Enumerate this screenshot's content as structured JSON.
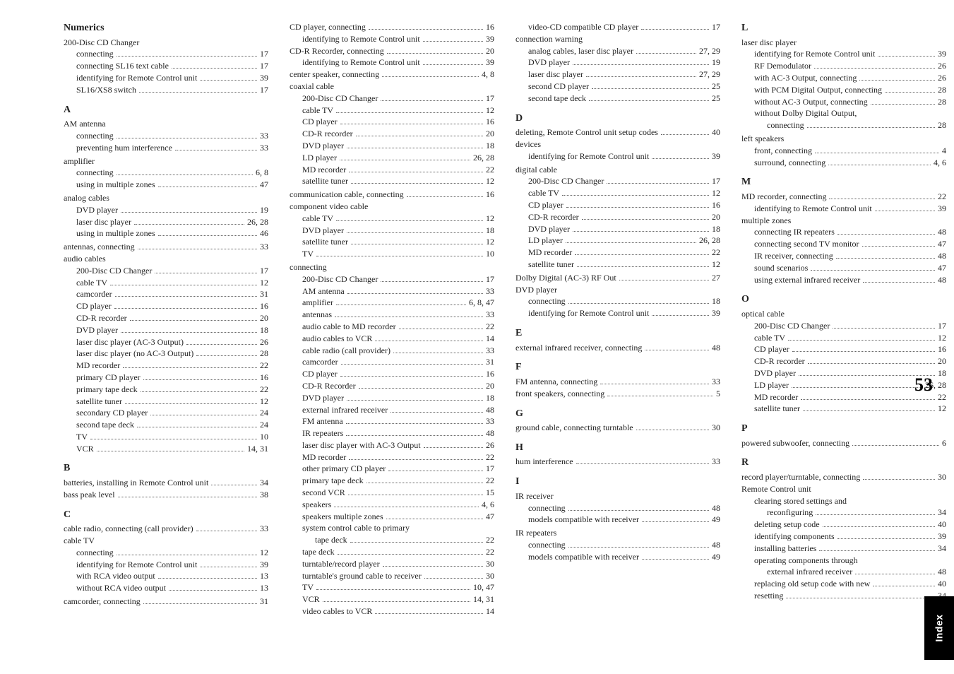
{
  "bigPage": "53",
  "sideTab": "Index",
  "columns": [
    [
      {
        "type": "heading",
        "text": "Numerics"
      },
      {
        "type": "group",
        "title": "200-Disc CD Changer",
        "items": [
          {
            "l": 1,
            "t": "connecting",
            "p": "17"
          },
          {
            "l": 1,
            "t": "connecting SL16 text cable",
            "p": "17"
          },
          {
            "l": 1,
            "t": "identifying for Remote Control unit",
            "p": "39"
          },
          {
            "l": 1,
            "t": "SL16/XS8 switch",
            "p": "17"
          }
        ]
      },
      {
        "type": "heading",
        "text": "A"
      },
      {
        "type": "group",
        "title": "AM antenna",
        "items": [
          {
            "l": 1,
            "t": "connecting",
            "p": "33"
          },
          {
            "l": 1,
            "t": "preventing hum interference",
            "p": "33"
          }
        ]
      },
      {
        "type": "group",
        "title": "amplifier",
        "items": [
          {
            "l": 1,
            "t": "connecting",
            "p": "6, 8"
          },
          {
            "l": 1,
            "t": "using in multiple zones",
            "p": "47"
          }
        ]
      },
      {
        "type": "group",
        "title": "analog cables",
        "items": [
          {
            "l": 1,
            "t": "DVD player",
            "p": "19"
          },
          {
            "l": 1,
            "t": "laser disc player",
            "p": "26, 28"
          },
          {
            "l": 1,
            "t": "using in multiple zones",
            "p": "46"
          }
        ]
      },
      {
        "type": "entry",
        "l": 0,
        "t": "antennas, connecting",
        "p": "33"
      },
      {
        "type": "group",
        "title": "audio cables",
        "items": [
          {
            "l": 1,
            "t": "200-Disc CD Changer",
            "p": "17"
          },
          {
            "l": 1,
            "t": "cable TV",
            "p": "12"
          },
          {
            "l": 1,
            "t": "camcorder",
            "p": "31"
          },
          {
            "l": 1,
            "t": "CD player",
            "p": "16"
          },
          {
            "l": 1,
            "t": "CD-R recorder",
            "p": "20"
          },
          {
            "l": 1,
            "t": "DVD player",
            "p": "18"
          },
          {
            "l": 1,
            "t": "laser disc player (AC-3 Output)",
            "p": "26"
          },
          {
            "l": 1,
            "t": "laser disc player (no AC-3 Output)",
            "p": "28"
          },
          {
            "l": 1,
            "t": "MD recorder",
            "p": "22"
          },
          {
            "l": 1,
            "t": "primary CD player",
            "p": "16"
          },
          {
            "l": 1,
            "t": "primary tape deck",
            "p": "22"
          },
          {
            "l": 1,
            "t": "satellite tuner",
            "p": "12"
          },
          {
            "l": 1,
            "t": "secondary CD player",
            "p": "24"
          },
          {
            "l": 1,
            "t": "second tape deck",
            "p": "24"
          },
          {
            "l": 1,
            "t": "TV",
            "p": "10"
          },
          {
            "l": 1,
            "t": "VCR",
            "p": "14, 31"
          }
        ]
      },
      {
        "type": "heading",
        "text": "B"
      },
      {
        "type": "entry",
        "l": 0,
        "t": "batteries, installing in Remote Control unit",
        "p": "34"
      },
      {
        "type": "entry",
        "l": 0,
        "t": "bass peak level",
        "p": "38"
      },
      {
        "type": "heading",
        "text": "C"
      },
      {
        "type": "entry",
        "l": 0,
        "t": "cable radio, connecting (call provider)",
        "p": "33"
      },
      {
        "type": "group",
        "title": "cable TV",
        "items": [
          {
            "l": 1,
            "t": "connecting",
            "p": "12"
          },
          {
            "l": 1,
            "t": "identifying for Remote Control unit",
            "p": "39"
          },
          {
            "l": 1,
            "t": "with RCA video output",
            "p": "13"
          },
          {
            "l": 1,
            "t": "without RCA video output",
            "p": "13"
          }
        ]
      },
      {
        "type": "entry",
        "l": 0,
        "t": "camcorder, connecting",
        "p": "31"
      }
    ],
    [
      {
        "type": "entry",
        "l": 0,
        "t": "CD player, connecting",
        "p": "16"
      },
      {
        "type": "entry",
        "l": 1,
        "t": "identifying to Remote Control unit",
        "p": "39"
      },
      {
        "type": "entry",
        "l": 0,
        "t": "CD-R Recorder, connecting",
        "p": "20"
      },
      {
        "type": "entry",
        "l": 1,
        "t": "identifying to Remote Control unit",
        "p": "39"
      },
      {
        "type": "entry",
        "l": 0,
        "t": "center speaker, connecting",
        "p": "4, 8"
      },
      {
        "type": "group",
        "title": "coaxial cable",
        "items": [
          {
            "l": 1,
            "t": "200-Disc CD Changer",
            "p": "17"
          },
          {
            "l": 1,
            "t": "cable TV",
            "p": "12"
          },
          {
            "l": 1,
            "t": "CD player",
            "p": "16"
          },
          {
            "l": 1,
            "t": "CD-R recorder",
            "p": "20"
          },
          {
            "l": 1,
            "t": "DVD player",
            "p": "18"
          },
          {
            "l": 1,
            "t": "LD player",
            "p": "26, 28"
          },
          {
            "l": 1,
            "t": "MD recorder",
            "p": "22"
          },
          {
            "l": 1,
            "t": "satellite tuner",
            "p": "12"
          }
        ]
      },
      {
        "type": "entry",
        "l": 0,
        "t": "communication cable, connecting",
        "p": "16"
      },
      {
        "type": "group",
        "title": "component video cable",
        "items": [
          {
            "l": 1,
            "t": "cable TV",
            "p": "12"
          },
          {
            "l": 1,
            "t": "DVD player",
            "p": "18"
          },
          {
            "l": 1,
            "t": "satellite tuner",
            "p": "12"
          },
          {
            "l": 1,
            "t": "TV",
            "p": "10"
          }
        ]
      },
      {
        "type": "group",
        "title": "connecting",
        "items": [
          {
            "l": 1,
            "t": "200-Disc CD Changer",
            "p": "17"
          },
          {
            "l": 1,
            "t": "AM antenna",
            "p": "33"
          },
          {
            "l": 1,
            "t": "amplifier",
            "p": "6, 8, 47"
          },
          {
            "l": 1,
            "t": "antennas",
            "p": "33"
          },
          {
            "l": 1,
            "t": "audio cable to MD recorder",
            "p": "22"
          },
          {
            "l": 1,
            "t": "audio cables to VCR",
            "p": "14"
          },
          {
            "l": 1,
            "t": "cable radio (call provider)",
            "p": "33"
          },
          {
            "l": 1,
            "t": "camcorder",
            "p": "31"
          },
          {
            "l": 1,
            "t": "CD player",
            "p": "16"
          },
          {
            "l": 1,
            "t": "CD-R Recorder",
            "p": "20"
          },
          {
            "l": 1,
            "t": "DVD player",
            "p": "18"
          },
          {
            "l": 1,
            "t": "external infrared receiver",
            "p": "48"
          },
          {
            "l": 1,
            "t": "FM antenna",
            "p": "33"
          },
          {
            "l": 1,
            "t": "IR repeaters",
            "p": "48"
          },
          {
            "l": 1,
            "t": "laser disc player with AC-3 Output",
            "p": "26"
          },
          {
            "l": 1,
            "t": "MD recorder",
            "p": "22"
          },
          {
            "l": 1,
            "t": "other primary CD player",
            "p": "17"
          },
          {
            "l": 1,
            "t": "primary tape deck",
            "p": "22"
          },
          {
            "l": 1,
            "t": "second VCR",
            "p": "15"
          },
          {
            "l": 1,
            "t": "speakers",
            "p": "4, 6"
          },
          {
            "l": 1,
            "t": "speakers multiple zones",
            "p": "47"
          },
          {
            "l": 1,
            "t": "system control cable to primary"
          },
          {
            "l": 2,
            "t": "tape deck",
            "p": "22"
          },
          {
            "l": 1,
            "t": "tape deck",
            "p": "22"
          },
          {
            "l": 1,
            "t": "turntable/record player",
            "p": "30"
          },
          {
            "l": 1,
            "t": "turntable's ground cable to receiver",
            "p": "30"
          },
          {
            "l": 1,
            "t": "TV",
            "p": "10, 47"
          },
          {
            "l": 1,
            "t": "VCR",
            "p": "14, 31"
          },
          {
            "l": 1,
            "t": "video cables to VCR",
            "p": "14"
          }
        ]
      }
    ],
    [
      {
        "type": "entry",
        "l": 1,
        "t": "video-CD compatible CD player",
        "p": "17"
      },
      {
        "type": "group",
        "title": "connection warning",
        "items": [
          {
            "l": 1,
            "t": "analog cables, laser disc player",
            "p": "27, 29"
          },
          {
            "l": 1,
            "t": "DVD player",
            "p": "19"
          },
          {
            "l": 1,
            "t": "laser disc player",
            "p": "27, 29"
          },
          {
            "l": 1,
            "t": "second CD player",
            "p": "25"
          },
          {
            "l": 1,
            "t": "second tape deck",
            "p": "25"
          }
        ]
      },
      {
        "type": "heading",
        "text": "D"
      },
      {
        "type": "entry",
        "l": 0,
        "t": "deleting, Remote Control unit setup codes",
        "p": "40"
      },
      {
        "type": "group",
        "title": "devices",
        "items": [
          {
            "l": 1,
            "t": "identifying for Remote Control unit",
            "p": "39"
          }
        ]
      },
      {
        "type": "group",
        "title": "digital cable",
        "items": [
          {
            "l": 1,
            "t": "200-Disc CD Changer",
            "p": "17"
          },
          {
            "l": 1,
            "t": "cable TV",
            "p": "12"
          },
          {
            "l": 1,
            "t": "CD player",
            "p": "16"
          },
          {
            "l": 1,
            "t": "CD-R recorder",
            "p": "20"
          },
          {
            "l": 1,
            "t": "DVD player",
            "p": "18"
          },
          {
            "l": 1,
            "t": "LD player",
            "p": "26, 28"
          },
          {
            "l": 1,
            "t": "MD recorder",
            "p": "22"
          },
          {
            "l": 1,
            "t": "satellite tuner",
            "p": "12"
          }
        ]
      },
      {
        "type": "entry",
        "l": 0,
        "t": "Dolby Digital (AC-3) RF Out",
        "p": "27"
      },
      {
        "type": "group",
        "title": "DVD player",
        "items": [
          {
            "l": 1,
            "t": "connecting",
            "p": "18"
          },
          {
            "l": 1,
            "t": "identifying for Remote Control unit",
            "p": "39"
          }
        ]
      },
      {
        "type": "heading",
        "text": "E"
      },
      {
        "type": "entry",
        "l": 0,
        "t": "external infrared receiver, connecting",
        "p": "48"
      },
      {
        "type": "heading",
        "text": "F"
      },
      {
        "type": "entry",
        "l": 0,
        "t": "FM antenna, connecting",
        "p": "33"
      },
      {
        "type": "entry",
        "l": 0,
        "t": "front speakers, connecting",
        "p": "5"
      },
      {
        "type": "heading",
        "text": "G"
      },
      {
        "type": "entry",
        "l": 0,
        "t": "ground cable, connecting turntable",
        "p": "30"
      },
      {
        "type": "heading",
        "text": "H"
      },
      {
        "type": "entry",
        "l": 0,
        "t": "hum interference",
        "p": "33"
      },
      {
        "type": "heading",
        "text": "I"
      },
      {
        "type": "group",
        "title": "IR receiver",
        "items": [
          {
            "l": 1,
            "t": "connecting",
            "p": "48"
          },
          {
            "l": 1,
            "t": "models compatible with receiver",
            "p": "49"
          }
        ]
      },
      {
        "type": "group",
        "title": "IR repeaters",
        "items": [
          {
            "l": 1,
            "t": "connecting",
            "p": "48"
          },
          {
            "l": 1,
            "t": "models compatible with receiver",
            "p": "49"
          }
        ]
      }
    ],
    [
      {
        "type": "heading",
        "text": "L"
      },
      {
        "type": "group",
        "title": "laser disc player",
        "items": [
          {
            "l": 1,
            "t": "identifying for Remote Control unit",
            "p": "39"
          },
          {
            "l": 1,
            "t": "RF Demodulator",
            "p": "26"
          },
          {
            "l": 1,
            "t": "with AC-3 Output, connecting",
            "p": "26"
          },
          {
            "l": 1,
            "t": "with PCM Digital Output, connecting",
            "p": "28"
          },
          {
            "l": 1,
            "t": "without AC-3 Output, connecting",
            "p": "28"
          },
          {
            "l": 1,
            "t": "without Dolby Digital Output,"
          },
          {
            "l": 2,
            "t": "connecting",
            "p": "28"
          }
        ]
      },
      {
        "type": "group",
        "title": "left speakers",
        "items": [
          {
            "l": 1,
            "t": "front, connecting",
            "p": "4"
          },
          {
            "l": 1,
            "t": "surround, connecting",
            "p": "4, 6"
          }
        ]
      },
      {
        "type": "heading",
        "text": "M"
      },
      {
        "type": "entry",
        "l": 0,
        "t": "MD recorder, connecting",
        "p": "22"
      },
      {
        "type": "entry",
        "l": 1,
        "t": "identifying to Remote Control unit",
        "p": "39"
      },
      {
        "type": "group",
        "title": "multiple zones",
        "items": [
          {
            "l": 1,
            "t": "connecting IR repeaters",
            "p": "48"
          },
          {
            "l": 1,
            "t": "connecting second TV monitor",
            "p": "47"
          },
          {
            "l": 1,
            "t": "IR receiver, connecting",
            "p": "48"
          },
          {
            "l": 1,
            "t": "sound scenarios",
            "p": "47"
          },
          {
            "l": 1,
            "t": "using external infrared receiver",
            "p": "48"
          }
        ]
      },
      {
        "type": "heading",
        "text": "O"
      },
      {
        "type": "group",
        "title": "optical cable",
        "items": [
          {
            "l": 1,
            "t": "200-Disc CD Changer",
            "p": "17"
          },
          {
            "l": 1,
            "t": "cable TV",
            "p": "12"
          },
          {
            "l": 1,
            "t": "CD player",
            "p": "16"
          },
          {
            "l": 1,
            "t": "CD-R recorder",
            "p": "20"
          },
          {
            "l": 1,
            "t": "DVD player",
            "p": "18"
          },
          {
            "l": 1,
            "t": "LD player",
            "p": "26, 28"
          },
          {
            "l": 1,
            "t": "MD recorder",
            "p": "22"
          },
          {
            "l": 1,
            "t": "satellite tuner",
            "p": "12"
          }
        ]
      },
      {
        "type": "heading",
        "text": "P"
      },
      {
        "type": "entry",
        "l": 0,
        "t": "powered subwoofer, connecting",
        "p": "6"
      },
      {
        "type": "heading",
        "text": "R"
      },
      {
        "type": "entry",
        "l": 0,
        "t": "record player/turntable, connecting",
        "p": "30"
      },
      {
        "type": "group",
        "title": "Remote Control unit",
        "items": [
          {
            "l": 1,
            "t": "clearing stored settings and"
          },
          {
            "l": 2,
            "t": "reconfiguring",
            "p": "34"
          },
          {
            "l": 1,
            "t": "deleting setup code",
            "p": "40"
          },
          {
            "l": 1,
            "t": "identifying components",
            "p": "39"
          },
          {
            "l": 1,
            "t": "installing batteries",
            "p": "34"
          },
          {
            "l": 1,
            "t": "operating components through"
          },
          {
            "l": 2,
            "t": "external infrared receiver",
            "p": "48"
          },
          {
            "l": 1,
            "t": "replacing old setup code with new",
            "p": "40"
          },
          {
            "l": 1,
            "t": "resetting",
            "p": "34"
          }
        ]
      }
    ]
  ]
}
